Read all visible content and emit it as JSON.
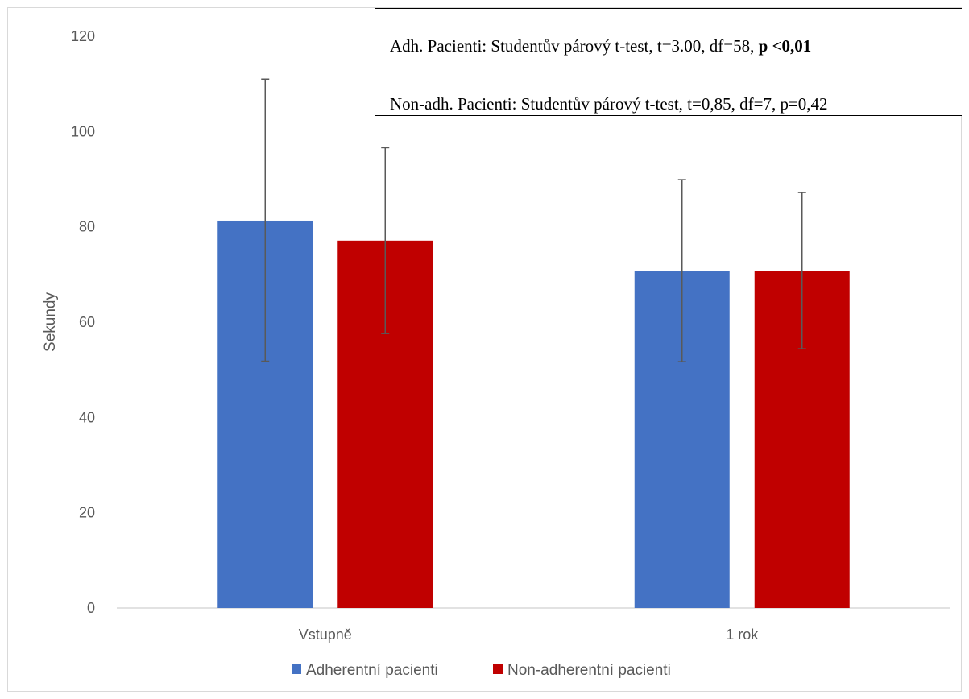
{
  "colors": {
    "adherent": "#4472C4",
    "non_adherent": "#C00000",
    "error_bar": "#595959",
    "axis": "#d9d9d9"
  },
  "annotation": {
    "line1_text": "Adh. Pacienti: Studentův párový t-test, t=3.00, df=58, ",
    "line1_bold": "p <0,01",
    "line2_text": "Non-adh. Pacienti: Studentův párový t-test, t=0,85, df=7, p=0,42"
  },
  "chart_data": {
    "type": "bar",
    "categories": [
      "Vstupně",
      "1 rok"
    ],
    "series": [
      {
        "name": "Adherentní pacienti",
        "values": [
          81.3,
          70.8
        ],
        "err_low": [
          51.8,
          51.7
        ],
        "err_high": [
          111.0,
          89.9
        ]
      },
      {
        "name": "Non-adherentní pacienti",
        "values": [
          77.1,
          70.8
        ],
        "err_low": [
          57.6,
          54.4
        ],
        "err_high": [
          96.6,
          87.2
        ]
      }
    ],
    "title": "",
    "xlabel": "",
    "ylabel": "Sekundy",
    "ylim": [
      0,
      120
    ],
    "yticks": [
      "0",
      "20",
      "40",
      "60",
      "80",
      "100",
      "120"
    ],
    "grid": false,
    "legend_position": "bottom"
  }
}
